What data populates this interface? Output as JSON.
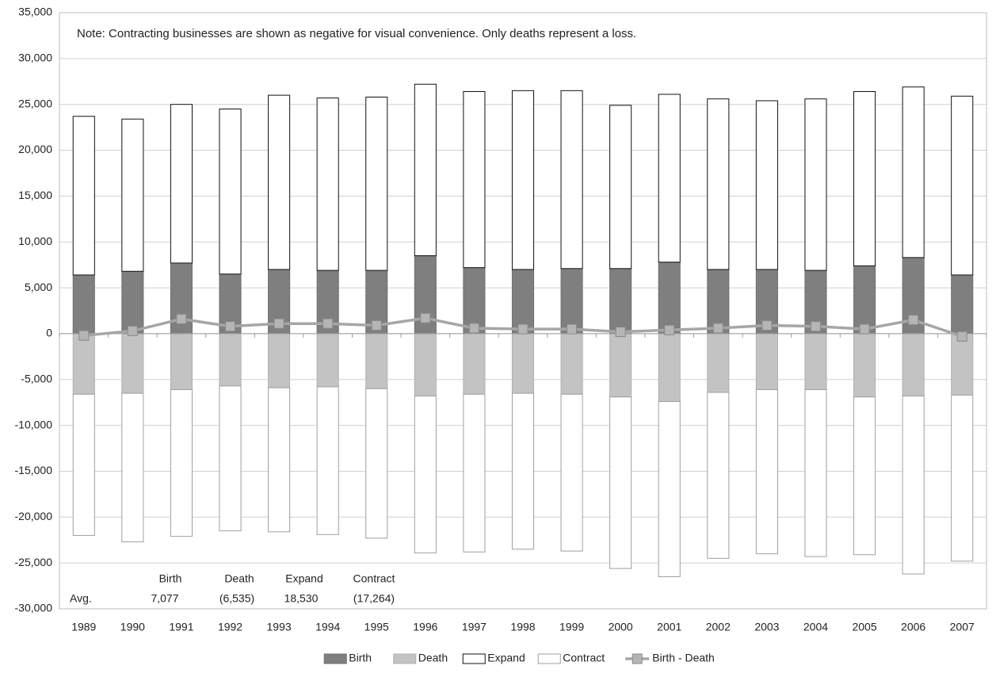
{
  "chart_data": {
    "type": "bar",
    "stacked": true,
    "note": "Note: Contracting businesses are shown as negative for visual convenience.  Only deaths represent a loss.",
    "averages": {
      "label": "Avg.",
      "headers": [
        "Birth",
        "Death",
        "Expand",
        "Contract"
      ],
      "values": [
        "7,077",
        "(6,535)",
        "18,530",
        "(17,264)"
      ]
    },
    "categories": [
      "1989",
      "1990",
      "1991",
      "1992",
      "1993",
      "1994",
      "1995",
      "1996",
      "1997",
      "1998",
      "1999",
      "2000",
      "2001",
      "2002",
      "2003",
      "2004",
      "2005",
      "2006",
      "2007"
    ],
    "series": [
      {
        "name": "Birth",
        "type": "bar",
        "color": "#7f7f7f",
        "stroke": "#6f6f6f",
        "values": [
          6400,
          6800,
          7700,
          6500,
          7000,
          6900,
          6900,
          8500,
          7200,
          7000,
          7100,
          7100,
          7800,
          7000,
          7000,
          6900,
          7400,
          8300,
          6400
        ]
      },
      {
        "name": "Death",
        "type": "bar",
        "color": "#c3c3c3",
        "stroke": "#b0b0b0",
        "values": [
          -6600,
          -6500,
          -6100,
          -5700,
          -5900,
          -5800,
          -6000,
          -6800,
          -6600,
          -6500,
          -6600,
          -6900,
          -7400,
          -6400,
          -6100,
          -6100,
          -6900,
          -6800,
          -6700
        ]
      },
      {
        "name": "Expand",
        "type": "bar",
        "color": "#ffffff",
        "stroke": "#111111",
        "values": [
          17300,
          16600,
          17300,
          18000,
          19000,
          18800,
          18900,
          18700,
          19200,
          19500,
          19400,
          17800,
          18300,
          18600,
          18400,
          18700,
          19000,
          18600,
          19500
        ]
      },
      {
        "name": "Contract",
        "type": "bar",
        "color": "#ffffff",
        "stroke": "#a0a0a0",
        "values": [
          -15400,
          -16200,
          -16000,
          -15800,
          -15700,
          -16100,
          -16300,
          -17100,
          -17200,
          -17000,
          -17100,
          -18700,
          -19100,
          -18100,
          -17900,
          -18200,
          -17200,
          -19400,
          -18100
        ]
      },
      {
        "name": "Birth - Death",
        "type": "line",
        "color": "#a6a6a6",
        "stroke": "#8a8a8a",
        "values": [
          -200,
          300,
          1600,
          800,
          1100,
          1100,
          900,
          1700,
          600,
          500,
          500,
          200,
          400,
          600,
          900,
          800,
          500,
          1500,
          -300
        ]
      }
    ],
    "ylim": [
      -30000,
      35000
    ],
    "yticks": [
      {
        "value": -30000,
        "label": "-30,000"
      },
      {
        "value": -25000,
        "label": "-25,000"
      },
      {
        "value": -20000,
        "label": "-20,000"
      },
      {
        "value": -15000,
        "label": "-15,000"
      },
      {
        "value": -10000,
        "label": "-10,000"
      },
      {
        "value": -5000,
        "label": "-5,000"
      },
      0,
      {
        "value": 5000,
        "label": "5,000"
      },
      {
        "value": 10000,
        "label": "10,000"
      },
      {
        "value": 15000,
        "label": "15,000"
      },
      {
        "value": 20000,
        "label": "20,000"
      },
      {
        "value": 25000,
        "label": "25,000"
      },
      {
        "value": 30000,
        "label": "30,000"
      },
      {
        "value": 35000,
        "label": "35,000"
      }
    ],
    "grid": true,
    "legend": "bottom"
  }
}
